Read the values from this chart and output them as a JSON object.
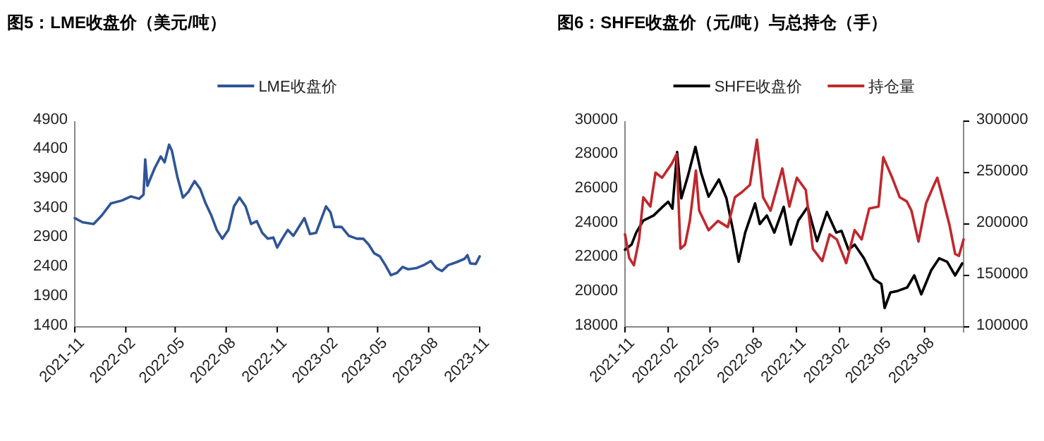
{
  "chart_data": [
    {
      "type": "line",
      "title": "图5：LME收盘价（美元/吨）",
      "legend": "top",
      "xlim": [
        "2021-11-01",
        "2023-11-01"
      ],
      "xticks": [
        {
          "value": "2021-11",
          "label": "2021-11"
        },
        {
          "value": "2022-02",
          "label": "2022-02"
        },
        {
          "value": "2022-05",
          "label": "2022-05"
        },
        {
          "value": "2022-08",
          "label": "2022-08"
        },
        {
          "value": "2022-11",
          "label": "2022-11"
        },
        {
          "value": "2023-02",
          "label": "2023-02"
        },
        {
          "value": "2023-05",
          "label": "2023-05"
        },
        {
          "value": "2023-08",
          "label": "2023-08"
        },
        {
          "value": "2023-11",
          "label": "2023-11"
        }
      ],
      "ylim": [
        1400,
        4900
      ],
      "yticks": [
        1400,
        1900,
        2400,
        2900,
        3400,
        3900,
        4400,
        4900
      ],
      "series": [
        {
          "name": "LME收盘价",
          "color": "#2f5597",
          "x": [
            "2021-11-01",
            "2021-11-15",
            "2021-12-05",
            "2021-12-20",
            "2022-01-05",
            "2022-01-25",
            "2022-02-10",
            "2022-02-25",
            "2022-03-05",
            "2022-03-08",
            "2022-03-12",
            "2022-03-25",
            "2022-04-05",
            "2022-04-12",
            "2022-04-20",
            "2022-04-25",
            "2022-05-05",
            "2022-05-15",
            "2022-05-25",
            "2022-06-05",
            "2022-06-15",
            "2022-06-25",
            "2022-07-05",
            "2022-07-15",
            "2022-07-25",
            "2022-08-05",
            "2022-08-15",
            "2022-08-25",
            "2022-09-05",
            "2022-09-15",
            "2022-09-25",
            "2022-10-05",
            "2022-10-15",
            "2022-10-25",
            "2022-11-01",
            "2022-11-10",
            "2022-11-20",
            "2022-11-30",
            "2022-12-10",
            "2022-12-20",
            "2022-12-30",
            "2023-01-10",
            "2023-01-20",
            "2023-01-28",
            "2023-02-05",
            "2023-02-12",
            "2023-02-25",
            "2023-03-10",
            "2023-03-25",
            "2023-04-05",
            "2023-04-15",
            "2023-04-25",
            "2023-05-05",
            "2023-05-15",
            "2023-05-25",
            "2023-06-05",
            "2023-06-15",
            "2023-06-25",
            "2023-07-10",
            "2023-07-25",
            "2023-08-05",
            "2023-08-15",
            "2023-08-25",
            "2023-09-05",
            "2023-09-20",
            "2023-10-05",
            "2023-10-10",
            "2023-10-15",
            "2023-10-25",
            "2023-11-01"
          ],
          "values": [
            3250,
            3180,
            3150,
            3300,
            3500,
            3550,
            3620,
            3580,
            3650,
            4250,
            3800,
            4100,
            4300,
            4200,
            4500,
            4400,
            3950,
            3600,
            3700,
            3880,
            3750,
            3500,
            3300,
            3050,
            2900,
            3050,
            3450,
            3600,
            3450,
            3150,
            3200,
            3000,
            2900,
            2920,
            2750,
            2900,
            3050,
            2950,
            3100,
            3250,
            2980,
            3000,
            3250,
            3450,
            3350,
            3100,
            3100,
            2950,
            2900,
            2900,
            2800,
            2650,
            2600,
            2450,
            2280,
            2320,
            2420,
            2380,
            2400,
            2460,
            2520,
            2400,
            2350,
            2450,
            2500,
            2560,
            2620,
            2480,
            2470,
            2600
          ]
        }
      ]
    },
    {
      "type": "line",
      "title": "图6：SHFE收盘价（元/吨）与总持仓（手）",
      "legend": "top",
      "xlim": [
        "2021-11-01",
        "2023-10-23"
      ],
      "xticks": [
        {
          "value": "2021-11",
          "label": "2021-11"
        },
        {
          "value": "2022-02",
          "label": "2022-02"
        },
        {
          "value": "2022-05",
          "label": "2022-05"
        },
        {
          "value": "2022-08",
          "label": "2022-08"
        },
        {
          "value": "2022-11",
          "label": "2022-11"
        },
        {
          "value": "2023-02",
          "label": "2023-02"
        },
        {
          "value": "2023-05",
          "label": "2023-05"
        },
        {
          "value": "2023-08",
          "label": "2023-08"
        }
      ],
      "ylim": [
        18000,
        30000
      ],
      "yticks": [
        18000,
        20000,
        22000,
        24000,
        26000,
        28000,
        30000
      ],
      "y2lim": [
        100000,
        300000
      ],
      "y2ticks": [
        100000,
        150000,
        200000,
        250000,
        300000
      ],
      "series": [
        {
          "name": "SHFE收盘价",
          "color": "#000000",
          "x": [
            "2021-11-01",
            "2021-11-15",
            "2021-11-25",
            "2021-12-10",
            "2022-01-01",
            "2022-01-20",
            "2022-02-01",
            "2022-02-10",
            "2022-02-20",
            "2022-03-01",
            "2022-03-15",
            "2022-03-31",
            "2022-04-12",
            "2022-04-28",
            "2022-05-20",
            "2022-06-05",
            "2022-06-20",
            "2022-07-01",
            "2022-07-15",
            "2022-08-05",
            "2022-08-15",
            "2022-08-30",
            "2022-09-15",
            "2022-10-05",
            "2022-10-20",
            "2022-11-05",
            "2022-11-25",
            "2022-12-15",
            "2023-01-05",
            "2023-01-25",
            "2023-02-05",
            "2023-02-20",
            "2023-03-05",
            "2023-03-25",
            "2023-04-15",
            "2023-05-01",
            "2023-05-08",
            "2023-05-20",
            "2023-06-05",
            "2023-06-25",
            "2023-07-10",
            "2023-07-25",
            "2023-08-15",
            "2023-09-01",
            "2023-09-18",
            "2023-10-05",
            "2023-10-20"
          ],
          "values": [
            22500,
            22800,
            23500,
            24200,
            24500,
            25000,
            25300,
            24900,
            28200,
            25500,
            26800,
            28500,
            27000,
            25600,
            26600,
            25500,
            23500,
            21800,
            23500,
            25200,
            24000,
            24500,
            23500,
            25000,
            22800,
            24200,
            25000,
            23000,
            24700,
            23500,
            23600,
            22500,
            22800,
            22000,
            20800,
            20500,
            19100,
            20000,
            20100,
            20300,
            21000,
            19900,
            21300,
            22000,
            21800,
            21000,
            21700
          ]
        },
        {
          "name": "持仓量",
          "color": "#c0282d",
          "axis": "y2",
          "x": [
            "2021-11-01",
            "2021-11-10",
            "2021-11-20",
            "2021-12-01",
            "2021-12-10",
            "2021-12-25",
            "2022-01-05",
            "2022-01-19",
            "2022-02-09",
            "2022-02-19",
            "2022-02-27",
            "2022-03-09",
            "2022-03-19",
            "2022-04-01",
            "2022-04-08",
            "2022-04-28",
            "2022-05-18",
            "2022-06-08",
            "2022-06-23",
            "2022-07-08",
            "2022-07-25",
            "2022-08-09",
            "2022-08-22",
            "2022-09-07",
            "2022-10-02",
            "2022-10-17",
            "2022-11-02",
            "2022-11-21",
            "2022-12-06",
            "2022-12-26",
            "2023-01-11",
            "2023-01-26",
            "2023-02-15",
            "2023-03-05",
            "2023-03-20",
            "2023-04-05",
            "2023-04-25",
            "2023-05-05",
            "2023-05-24",
            "2023-06-09",
            "2023-06-24",
            "2023-07-04",
            "2023-07-19",
            "2023-08-04",
            "2023-08-19",
            "2023-08-28",
            "2023-09-08",
            "2023-09-23",
            "2023-10-05",
            "2023-10-13",
            "2023-10-23"
          ],
          "values": [
            190000,
            167000,
            160000,
            185000,
            226000,
            217000,
            250000,
            245000,
            259000,
            268000,
            176000,
            180000,
            203000,
            252000,
            213000,
            194000,
            203000,
            197000,
            226000,
            231000,
            238000,
            282000,
            226000,
            213000,
            254000,
            217000,
            245000,
            233000,
            176000,
            164000,
            190000,
            185000,
            162000,
            194000,
            185000,
            215000,
            217000,
            265000,
            245000,
            226000,
            222000,
            213000,
            183000,
            220000,
            236000,
            245000,
            226000,
            199000,
            171000,
            169000,
            185000
          ]
        }
      ]
    }
  ]
}
